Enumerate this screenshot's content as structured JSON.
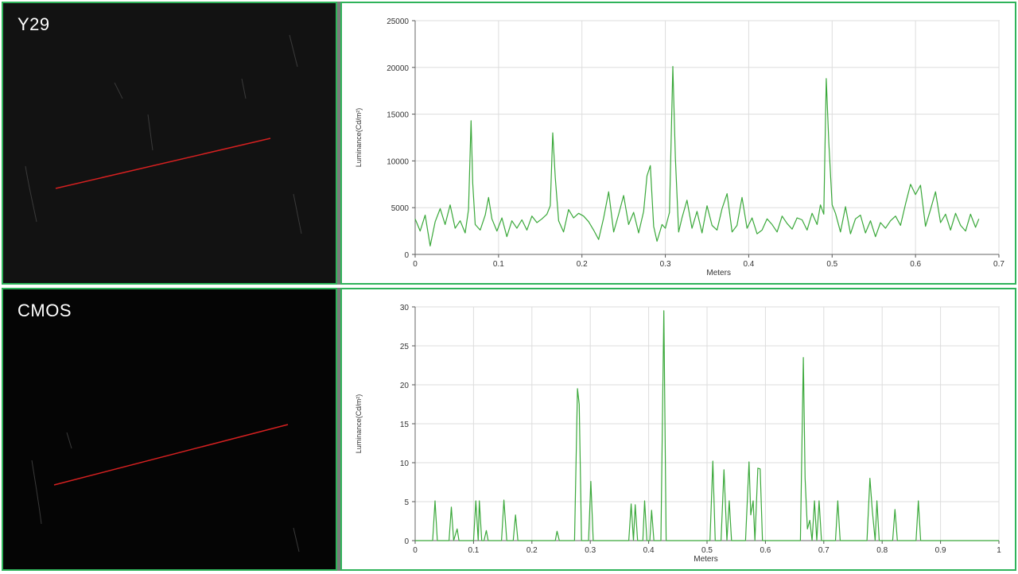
{
  "panels": {
    "top_label": "Y29",
    "bottom_label": "CMOS"
  },
  "colors": {
    "line": "#3aa83a",
    "border": "#2fb35a",
    "profile_line": "#d42020",
    "grid": "#dddddd"
  },
  "chart_data": [
    {
      "type": "line",
      "xlabel": "Meters",
      "ylabel": "Luminance(Cd/m²)",
      "xlim": [
        0,
        0.7
      ],
      "ylim": [
        0,
        25000
      ],
      "xticks": [
        "0",
        "0.1",
        "0.2",
        "0.3",
        "0.4",
        "0.5",
        "0.6",
        "0.7"
      ],
      "yticks": [
        "0",
        "5000",
        "10000",
        "15000",
        "20000",
        "25000"
      ],
      "grid": true,
      "x": [
        0,
        0.006,
        0.012,
        0.018,
        0.024,
        0.03,
        0.036,
        0.042,
        0.048,
        0.054,
        0.06,
        0.064,
        0.067,
        0.069,
        0.072,
        0.078,
        0.084,
        0.088,
        0.092,
        0.098,
        0.104,
        0.11,
        0.116,
        0.122,
        0.128,
        0.134,
        0.14,
        0.146,
        0.152,
        0.158,
        0.162,
        0.165,
        0.168,
        0.172,
        0.178,
        0.184,
        0.19,
        0.196,
        0.202,
        0.208,
        0.214,
        0.22,
        0.226,
        0.232,
        0.238,
        0.244,
        0.25,
        0.256,
        0.262,
        0.268,
        0.274,
        0.278,
        0.282,
        0.286,
        0.29,
        0.296,
        0.3,
        0.305,
        0.309,
        0.312,
        0.316,
        0.32,
        0.326,
        0.332,
        0.338,
        0.344,
        0.35,
        0.356,
        0.362,
        0.368,
        0.374,
        0.38,
        0.386,
        0.392,
        0.398,
        0.404,
        0.41,
        0.416,
        0.422,
        0.428,
        0.434,
        0.44,
        0.446,
        0.452,
        0.458,
        0.464,
        0.47,
        0.476,
        0.482,
        0.486,
        0.49,
        0.493,
        0.496,
        0.5,
        0.504,
        0.51,
        0.516,
        0.522,
        0.528,
        0.534,
        0.54,
        0.546,
        0.552,
        0.558,
        0.564,
        0.57,
        0.576,
        0.582,
        0.588,
        0.594,
        0.6,
        0.606,
        0.612,
        0.618,
        0.624,
        0.63,
        0.636,
        0.642,
        0.648,
        0.654,
        0.66,
        0.666,
        0.672,
        0.676
      ],
      "series": [
        {
          "values": [
            3800,
            2500,
            4200,
            900,
            3500,
            4900,
            3200,
            5300,
            2800,
            3600,
            2300,
            4800,
            14300,
            7600,
            3200,
            2600,
            4200,
            6100,
            3800,
            2500,
            3900,
            1900,
            3600,
            2800,
            3700,
            2600,
            4100,
            3400,
            3800,
            4300,
            5200,
            13000,
            8200,
            3600,
            2400,
            4800,
            3900,
            4400,
            4100,
            3500,
            2600,
            1600,
            3900,
            6700,
            2400,
            4300,
            6300,
            3200,
            4500,
            2300,
            4600,
            8400,
            9500,
            3000,
            1400,
            3200,
            2800,
            4500,
            20100,
            10300,
            2400,
            3900,
            5800,
            2800,
            4600,
            2300,
            5200,
            3100,
            2600,
            4900,
            6500,
            2400,
            3100,
            6100,
            2800,
            3900,
            2200,
            2600,
            3800,
            3200,
            2400,
            4100,
            3300,
            2700,
            3900,
            3700,
            2600,
            4400,
            3200,
            5300,
            4300,
            18800,
            12000,
            5300,
            4400,
            2400,
            5100,
            2200,
            3800,
            4200,
            2300,
            3600,
            1900,
            3400,
            2800,
            3600,
            4100,
            3100,
            5400,
            7500,
            6400,
            7400,
            3000,
            4800,
            6700,
            3400,
            4300,
            2600,
            4400,
            3100,
            2500,
            4300,
            2900,
            3800
          ]
        }
      ]
    },
    {
      "type": "line",
      "xlabel": "Meters",
      "ylabel": "Luminance(Cd/m²)",
      "xlim": [
        0,
        1
      ],
      "ylim": [
        0,
        30
      ],
      "xticks": [
        "0",
        "0.1",
        "0.2",
        "0.3",
        "0.4",
        "0.5",
        "0.6",
        "0.7",
        "0.8",
        "0.9",
        "1"
      ],
      "yticks": [
        "0",
        "5",
        "10",
        "15",
        "20",
        "25",
        "30"
      ],
      "grid": true,
      "x": [
        0,
        0.03,
        0.034,
        0.038,
        0.058,
        0.062,
        0.066,
        0.072,
        0.075,
        0.079,
        0.1,
        0.104,
        0.108,
        0.11,
        0.114,
        0.118,
        0.122,
        0.125,
        0.129,
        0.148,
        0.152,
        0.157,
        0.168,
        0.172,
        0.176,
        0.24,
        0.243,
        0.247,
        0.273,
        0.278,
        0.281,
        0.285,
        0.297,
        0.301,
        0.305,
        0.366,
        0.37,
        0.374,
        0.377,
        0.381,
        0.39,
        0.393,
        0.397,
        0.402,
        0.405,
        0.409,
        0.421,
        0.426,
        0.43,
        0.505,
        0.51,
        0.514,
        0.524,
        0.529,
        0.534,
        0.538,
        0.542,
        0.546,
        0.566,
        0.572,
        0.575,
        0.579,
        0.582,
        0.587,
        0.591,
        0.595,
        0.66,
        0.665,
        0.668,
        0.672,
        0.676,
        0.68,
        0.684,
        0.688,
        0.692,
        0.696,
        0.72,
        0.724,
        0.728,
        0.774,
        0.779,
        0.783,
        0.788,
        0.791,
        0.795,
        0.818,
        0.822,
        0.826,
        0.858,
        0.862,
        0.866,
        1.0
      ],
      "series": [
        {
          "values": [
            0,
            0,
            5.1,
            0,
            0,
            4.3,
            0,
            1.5,
            0,
            0,
            0,
            5.1,
            0,
            5.1,
            0,
            0,
            1.3,
            0,
            0,
            0,
            5.2,
            0,
            0,
            3.3,
            0,
            0,
            1.2,
            0,
            0,
            19.5,
            17.5,
            0,
            0,
            7.6,
            0,
            0,
            4.7,
            0,
            4.6,
            0,
            0,
            5.1,
            0,
            0,
            3.9,
            0,
            0,
            29.5,
            0,
            0,
            10.2,
            0,
            0,
            9.1,
            0,
            5.1,
            0,
            0,
            0,
            10.1,
            3.3,
            5.1,
            0,
            9.3,
            9.2,
            0,
            0,
            23.5,
            8.0,
            1.5,
            2.6,
            0,
            5.1,
            0,
            5.1,
            0,
            0,
            5.1,
            0,
            0,
            8.0,
            4.0,
            0,
            5.1,
            0,
            0,
            4.0,
            0,
            0,
            5.1,
            0,
            0
          ]
        }
      ]
    }
  ]
}
